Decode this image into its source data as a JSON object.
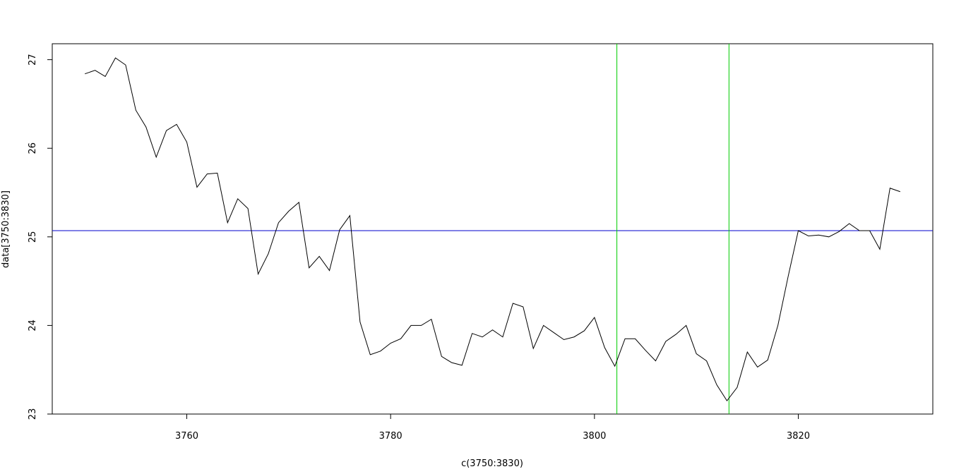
{
  "chart_data": {
    "type": "line",
    "title": "",
    "xlabel": "c(3750:3830)",
    "ylabel": "data[3750:3830]",
    "xlim": [
      3746.8,
      3833.2
    ],
    "ylim": [
      23.0,
      27.18
    ],
    "x_ticks": [
      3760,
      3780,
      3800,
      3820
    ],
    "y_ticks": [
      23,
      24,
      25,
      26,
      27
    ],
    "grid": false,
    "series": [
      {
        "color": "#000000",
        "x": [
          3750,
          3751,
          3752,
          3753,
          3754,
          3755,
          3756,
          3757,
          3758,
          3759,
          3760,
          3761,
          3762,
          3763,
          3764,
          3765,
          3766,
          3767,
          3768,
          3769,
          3770,
          3771,
          3772,
          3773,
          3774,
          3775,
          3776,
          3777,
          3778,
          3779,
          3780,
          3781,
          3782,
          3783,
          3784,
          3785,
          3786,
          3787,
          3788,
          3789,
          3790,
          3791,
          3792,
          3793,
          3794,
          3795,
          3796,
          3797,
          3798,
          3799,
          3800,
          3801,
          3802,
          3803,
          3804,
          3805,
          3806,
          3807,
          3808,
          3809,
          3810,
          3811,
          3812,
          3813,
          3814,
          3815,
          3816,
          3817,
          3818,
          3819,
          3820,
          3821,
          3822,
          3823,
          3824,
          3825,
          3826,
          3827,
          3828,
          3829,
          3830
        ],
        "y": [
          26.84,
          26.88,
          26.81,
          27.02,
          26.94,
          26.43,
          26.24,
          25.9,
          26.2,
          26.27,
          26.07,
          25.56,
          25.71,
          25.72,
          25.16,
          25.43,
          25.32,
          24.58,
          24.81,
          25.16,
          25.29,
          25.39,
          24.65,
          24.78,
          24.62,
          25.08,
          25.24,
          24.04,
          23.67,
          23.71,
          23.8,
          23.85,
          24.0,
          24.0,
          24.07,
          23.65,
          23.58,
          23.55,
          23.91,
          23.87,
          23.95,
          23.87,
          24.25,
          24.21,
          23.74,
          24.0,
          23.92,
          23.84,
          23.87,
          23.94,
          24.09,
          23.75,
          23.54,
          23.85,
          23.85,
          23.72,
          23.6,
          23.82,
          23.9,
          24.0,
          23.68,
          23.6,
          23.33,
          23.15,
          23.3,
          23.7,
          23.53,
          23.61,
          24.0,
          24.55,
          25.07,
          25.01,
          25.02,
          25.0,
          25.06,
          25.15,
          25.07,
          25.07,
          24.86,
          25.55,
          25.51
        ]
      }
    ],
    "reference_lines": [
      {
        "orientation": "horizontal",
        "value": 25.07,
        "color": "#0000cc"
      },
      {
        "orientation": "vertical",
        "value": 3802.2,
        "color": "#00cc00"
      },
      {
        "orientation": "vertical",
        "value": 3813.2,
        "color": "#00cc00"
      }
    ]
  }
}
